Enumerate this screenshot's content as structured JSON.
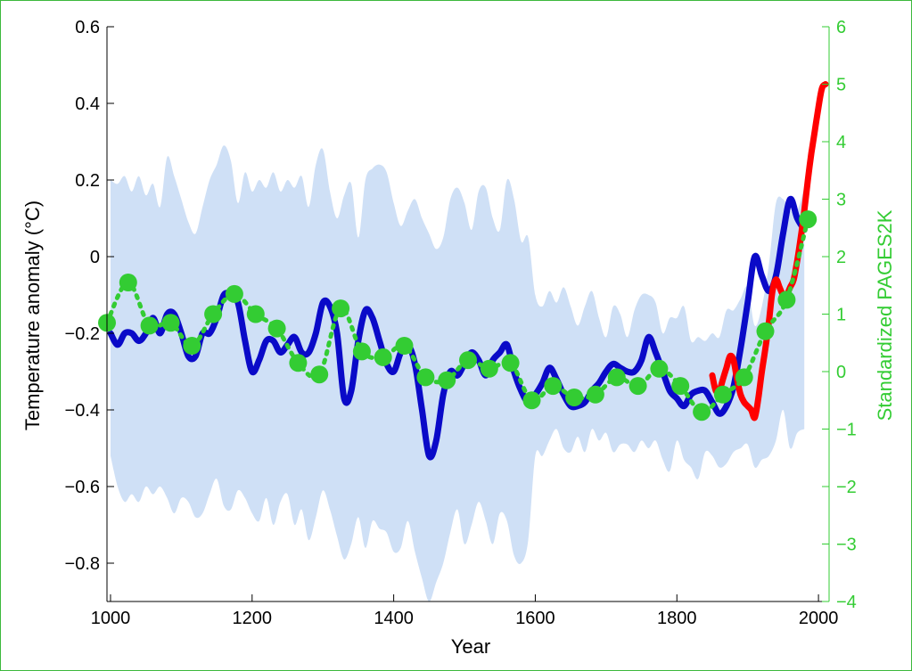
{
  "chart_data": {
    "type": "line",
    "xlabel": "Year",
    "ylabel": "Temperature anomaly (°C)",
    "y2label": "Standardized PAGES2K",
    "xlim": [
      995,
      2015
    ],
    "ylim": [
      -0.9,
      0.6
    ],
    "y2lim": [
      -4,
      6
    ],
    "grid": false,
    "x_ticks": [
      1000,
      1200,
      1400,
      1600,
      1800,
      2000
    ],
    "y_ticks": [
      -0.8,
      -0.6,
      -0.4,
      -0.2,
      0,
      0.2,
      0.4,
      0.6
    ],
    "y_tick_labels": [
      "−0.8",
      "−0.6",
      "−0.4",
      "−0.2",
      "0",
      "0.2",
      "0.4",
      "0.6"
    ],
    "y2_ticks": [
      -4,
      -3,
      -2,
      -1,
      0,
      1,
      2,
      3,
      4,
      5,
      6
    ],
    "y2_tick_labels": [
      "−4",
      "−3",
      "−2",
      "−1",
      "0",
      "1",
      "2",
      "3",
      "4",
      "5",
      "6"
    ],
    "colors": {
      "band": "#cfe0f6",
      "reconstruction": "#0a0ac8",
      "instrumental": "#ff0000",
      "pages2k": "#33cc33",
      "axis_left": "#000000",
      "axis_right": "#33cc33"
    },
    "uncertainty_band": {
      "x": [
        1000,
        1010,
        1020,
        1030,
        1040,
        1050,
        1060,
        1070,
        1080,
        1090,
        1100,
        1110,
        1120,
        1130,
        1140,
        1150,
        1160,
        1170,
        1180,
        1190,
        1200,
        1210,
        1220,
        1230,
        1240,
        1250,
        1260,
        1270,
        1280,
        1290,
        1300,
        1310,
        1320,
        1330,
        1340,
        1350,
        1360,
        1370,
        1380,
        1390,
        1400,
        1410,
        1420,
        1430,
        1440,
        1450,
        1460,
        1470,
        1480,
        1490,
        1500,
        1510,
        1520,
        1530,
        1540,
        1550,
        1560,
        1570,
        1580,
        1590,
        1600,
        1610,
        1620,
        1630,
        1640,
        1650,
        1660,
        1670,
        1680,
        1690,
        1700,
        1710,
        1720,
        1730,
        1740,
        1750,
        1760,
        1770,
        1780,
        1790,
        1800,
        1810,
        1820,
        1830,
        1840,
        1850,
        1860,
        1870,
        1880,
        1890,
        1900,
        1910,
        1920,
        1930,
        1940,
        1950,
        1960,
        1970,
        1980
      ],
      "upper": [
        0.2,
        0.19,
        0.21,
        0.17,
        0.21,
        0.16,
        0.19,
        0.13,
        0.26,
        0.21,
        0.15,
        0.09,
        0.06,
        0.13,
        0.2,
        0.24,
        0.29,
        0.25,
        0.14,
        0.22,
        0.17,
        0.2,
        0.18,
        0.22,
        0.17,
        0.2,
        0.18,
        0.21,
        0.13,
        0.24,
        0.28,
        0.17,
        0.1,
        0.16,
        0.19,
        0.05,
        0.2,
        0.23,
        0.24,
        0.22,
        0.14,
        0.08,
        0.12,
        0.15,
        0.1,
        0.06,
        0.02,
        0.05,
        0.15,
        0.18,
        0.14,
        0.07,
        0.17,
        0.18,
        0.1,
        0.07,
        0.2,
        0.15,
        0.04,
        0.05,
        -0.1,
        -0.13,
        -0.09,
        -0.12,
        -0.08,
        -0.13,
        -0.18,
        -0.13,
        -0.09,
        -0.16,
        -0.21,
        -0.13,
        -0.15,
        -0.21,
        -0.14,
        -0.1,
        -0.1,
        -0.12,
        -0.2,
        -0.16,
        -0.16,
        -0.13,
        -0.22,
        -0.21,
        -0.22,
        -0.2,
        -0.21,
        -0.14,
        -0.14,
        -0.11,
        -0.08,
        -0.18,
        -0.13,
        -0.02,
        0.14,
        0.15,
        0.12,
        0.12,
        0.18
      ],
      "lower": [
        -0.52,
        -0.6,
        -0.64,
        -0.62,
        -0.64,
        -0.6,
        -0.62,
        -0.6,
        -0.63,
        -0.67,
        -0.63,
        -0.64,
        -0.68,
        -0.67,
        -0.62,
        -0.58,
        -0.65,
        -0.66,
        -0.61,
        -0.63,
        -0.67,
        -0.69,
        -0.63,
        -0.7,
        -0.64,
        -0.62,
        -0.7,
        -0.66,
        -0.74,
        -0.68,
        -0.61,
        -0.66,
        -0.73,
        -0.79,
        -0.75,
        -0.68,
        -0.76,
        -0.69,
        -0.71,
        -0.72,
        -0.77,
        -0.76,
        -0.69,
        -0.77,
        -0.84,
        -0.9,
        -0.85,
        -0.8,
        -0.72,
        -0.66,
        -0.75,
        -0.7,
        -0.64,
        -0.69,
        -0.75,
        -0.67,
        -0.69,
        -0.78,
        -0.8,
        -0.74,
        -0.52,
        -0.52,
        -0.48,
        -0.45,
        -0.5,
        -0.51,
        -0.47,
        -0.51,
        -0.45,
        -0.48,
        -0.46,
        -0.51,
        -0.49,
        -0.49,
        -0.51,
        -0.48,
        -0.5,
        -0.48,
        -0.53,
        -0.56,
        -0.48,
        -0.53,
        -0.55,
        -0.58,
        -0.51,
        -0.52,
        -0.55,
        -0.54,
        -0.51,
        -0.5,
        -0.49,
        -0.55,
        -0.53,
        -0.52,
        -0.48,
        -0.4,
        -0.5,
        -0.46,
        -0.45
      ]
    },
    "series": [
      {
        "axis": "left",
        "style": "solid",
        "color": "#0a0ac8",
        "x": [
          1000,
          1010,
          1020,
          1030,
          1040,
          1050,
          1060,
          1070,
          1080,
          1090,
          1100,
          1110,
          1120,
          1130,
          1140,
          1150,
          1160,
          1170,
          1180,
          1190,
          1200,
          1210,
          1220,
          1230,
          1240,
          1250,
          1260,
          1270,
          1280,
          1290,
          1300,
          1310,
          1320,
          1330,
          1340,
          1350,
          1360,
          1370,
          1380,
          1390,
          1400,
          1410,
          1420,
          1430,
          1440,
          1450,
          1460,
          1470,
          1480,
          1490,
          1500,
          1510,
          1520,
          1530,
          1540,
          1550,
          1560,
          1570,
          1580,
          1590,
          1600,
          1610,
          1620,
          1630,
          1640,
          1650,
          1660,
          1670,
          1680,
          1690,
          1700,
          1710,
          1720,
          1730,
          1740,
          1750,
          1760,
          1770,
          1780,
          1790,
          1800,
          1810,
          1820,
          1830,
          1840,
          1850,
          1860,
          1870,
          1880,
          1890,
          1900,
          1910,
          1920,
          1930,
          1940,
          1950,
          1960,
          1970,
          1980
        ],
        "values": [
          -0.2,
          -0.23,
          -0.2,
          -0.2,
          -0.22,
          -0.2,
          -0.16,
          -0.2,
          -0.15,
          -0.15,
          -0.2,
          -0.26,
          -0.26,
          -0.2,
          -0.2,
          -0.16,
          -0.1,
          -0.1,
          -0.12,
          -0.22,
          -0.3,
          -0.27,
          -0.22,
          -0.22,
          -0.25,
          -0.23,
          -0.21,
          -0.25,
          -0.25,
          -0.2,
          -0.12,
          -0.13,
          -0.2,
          -0.37,
          -0.35,
          -0.22,
          -0.14,
          -0.16,
          -0.22,
          -0.28,
          -0.3,
          -0.25,
          -0.23,
          -0.28,
          -0.4,
          -0.52,
          -0.48,
          -0.36,
          -0.3,
          -0.31,
          -0.28,
          -0.25,
          -0.27,
          -0.31,
          -0.27,
          -0.25,
          -0.23,
          -0.3,
          -0.35,
          -0.38,
          -0.36,
          -0.33,
          -0.29,
          -0.32,
          -0.36,
          -0.39,
          -0.39,
          -0.38,
          -0.35,
          -0.33,
          -0.3,
          -0.28,
          -0.29,
          -0.3,
          -0.3,
          -0.27,
          -0.21,
          -0.25,
          -0.3,
          -0.35,
          -0.37,
          -0.39,
          -0.36,
          -0.35,
          -0.35,
          -0.38,
          -0.41,
          -0.39,
          -0.34,
          -0.24,
          -0.12,
          0.0,
          -0.05,
          -0.09,
          -0.05,
          0.06,
          0.15,
          0.1,
          0.07
        ]
      },
      {
        "axis": "left",
        "style": "solid",
        "color": "#ff0000",
        "x": [
          1850,
          1855,
          1860,
          1865,
          1870,
          1875,
          1880,
          1885,
          1890,
          1895,
          1900,
          1905,
          1910,
          1915,
          1920,
          1925,
          1930,
          1935,
          1940,
          1945,
          1950,
          1955,
          1960,
          1965,
          1970,
          1975,
          1980,
          1985,
          1990,
          1995,
          2000,
          2005,
          2010
        ],
        "values": [
          -0.31,
          -0.35,
          -0.35,
          -0.32,
          -0.29,
          -0.26,
          -0.27,
          -0.32,
          -0.36,
          -0.38,
          -0.39,
          -0.4,
          -0.42,
          -0.37,
          -0.3,
          -0.24,
          -0.17,
          -0.09,
          -0.06,
          -0.08,
          -0.1,
          -0.1,
          -0.08,
          -0.06,
          -0.01,
          0.05,
          0.12,
          0.2,
          0.27,
          0.33,
          0.39,
          0.44,
          0.45
        ]
      },
      {
        "axis": "right",
        "style": "dotted-markers",
        "color": "#33cc33",
        "x": [
          995,
          1025,
          1055,
          1085,
          1115,
          1145,
          1175,
          1205,
          1235,
          1265,
          1295,
          1325,
          1355,
          1385,
          1415,
          1445,
          1475,
          1505,
          1535,
          1565,
          1595,
          1625,
          1655,
          1685,
          1715,
          1745,
          1775,
          1805,
          1835,
          1865,
          1895,
          1925,
          1955,
          1985
        ],
        "values": [
          0.85,
          1.55,
          0.8,
          0.85,
          0.45,
          1.0,
          1.35,
          1.0,
          0.75,
          0.15,
          -0.05,
          1.1,
          0.35,
          0.25,
          0.45,
          -0.1,
          -0.15,
          0.2,
          0.05,
          0.15,
          -0.5,
          -0.25,
          -0.45,
          -0.4,
          -0.1,
          -0.25,
          0.05,
          -0.25,
          -0.7,
          -0.4,
          -0.1,
          0.7,
          1.25,
          2.65
        ]
      }
    ]
  }
}
